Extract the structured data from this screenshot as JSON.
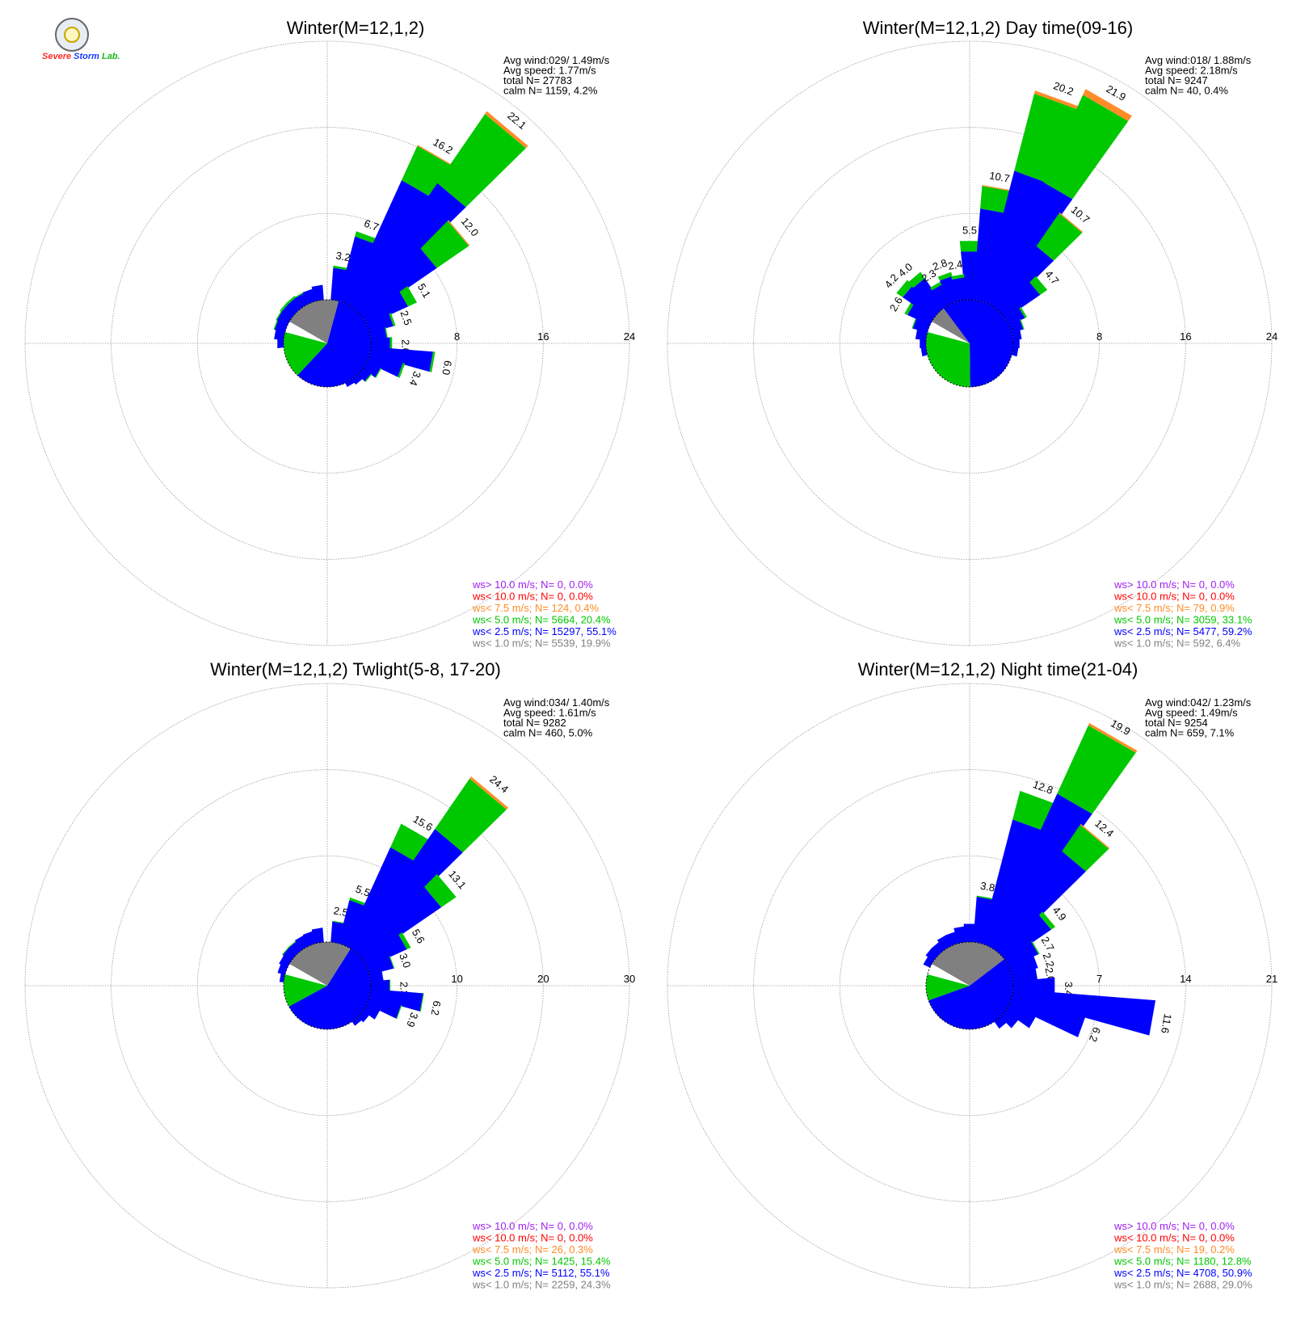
{
  "logo": {
    "word_severe": "Severe",
    "word_storm": "Storm",
    "word_lab": "Lab."
  },
  "colors": {
    "gt10": "#a020f0",
    "lt10": "#ff0000",
    "lt75": "#ff8c28",
    "lt50": "#00c800",
    "lt25": "#0000ff",
    "lt10calm": "#808080",
    "grid": "#999999"
  },
  "chart_data": [
    {
      "type": "polar-bar",
      "title": "Winter(M=12,1,2)",
      "rmax": 24,
      "ring_labels": [
        "8",
        "16",
        "24"
      ],
      "summary": [
        "Avg wind:029/ 1.49m/s",
        "Avg speed: 1.77m/s",
        "total N=      27783",
        "calm N=   1159,   4.2%"
      ],
      "inner_pct": {
        "gray": 19.9,
        "blue": 55.1,
        "green": 20.4
      },
      "spokes": [
        {
          "dir": 10,
          "total": 3.2,
          "b": 3.0,
          "gr": 0.2,
          "o": 0,
          "label": "3.2"
        },
        {
          "dir": 20,
          "total": 6.7,
          "b": 6.2,
          "gr": 0.5,
          "o": 0,
          "label": "6.7"
        },
        {
          "dir": 30,
          "total": 16.2,
          "b": 12.6,
          "gr": 3.5,
          "o": 0.1,
          "label": "16.2"
        },
        {
          "dir": 40,
          "total": 22.1,
          "b": 14.0,
          "gr": 7.8,
          "o": 0.3,
          "label": "22.1"
        },
        {
          "dir": 50,
          "total": 12.0,
          "b": 8.3,
          "gr": 3.6,
          "o": 0.1,
          "label": "12.0"
        },
        {
          "dir": 60,
          "total": 5.1,
          "b": 4.2,
          "gr": 0.9,
          "o": 0,
          "label": "5.1"
        },
        {
          "dir": 70,
          "total": 2.5,
          "b": 2.3,
          "gr": 0.2,
          "o": 0,
          "label": "2.5"
        },
        {
          "dir": 80,
          "total": 1.6,
          "b": 1.5,
          "gr": 0.1,
          "o": 0,
          "label": ""
        },
        {
          "dir": 90,
          "total": 2.0,
          "b": 1.8,
          "gr": 0.2,
          "o": 0,
          "label": "2.0"
        },
        {
          "dir": 100,
          "total": 6.0,
          "b": 5.8,
          "gr": 0.2,
          "o": 0,
          "label": "6.0"
        },
        {
          "dir": 110,
          "total": 3.4,
          "b": 3.2,
          "gr": 0.2,
          "o": 0,
          "label": "3.4"
        },
        {
          "dir": 120,
          "total": 1.5,
          "b": 1.4,
          "gr": 0.1,
          "o": 0,
          "label": ""
        },
        {
          "dir": 130,
          "total": 1.0,
          "b": 0.9,
          "gr": 0.1,
          "o": 0,
          "label": ""
        },
        {
          "dir": 140,
          "total": 0.6,
          "b": 0.6,
          "gr": 0,
          "o": 0,
          "label": ""
        },
        {
          "dir": 150,
          "total": 0.4,
          "b": 0.4,
          "gr": 0,
          "o": 0,
          "label": ""
        },
        {
          "dir": 270,
          "total": 0.6,
          "b": 0.6,
          "gr": 0,
          "o": 0,
          "label": ""
        },
        {
          "dir": 280,
          "total": 0.9,
          "b": 0.9,
          "gr": 0,
          "o": 0,
          "label": ""
        },
        {
          "dir": 290,
          "total": 1.1,
          "b": 1.0,
          "gr": 0.1,
          "o": 0,
          "label": ""
        },
        {
          "dir": 300,
          "total": 1.2,
          "b": 1.1,
          "gr": 0.1,
          "o": 0,
          "label": ""
        },
        {
          "dir": 310,
          "total": 1.3,
          "b": 1.1,
          "gr": 0.2,
          "o": 0,
          "label": ""
        },
        {
          "dir": 320,
          "total": 1.3,
          "b": 1.1,
          "gr": 0.2,
          "o": 0,
          "label": ""
        },
        {
          "dir": 330,
          "total": 1.2,
          "b": 1.1,
          "gr": 0.1,
          "o": 0,
          "label": ""
        },
        {
          "dir": 340,
          "total": 1.2,
          "b": 1.2,
          "gr": 0,
          "o": 0,
          "label": ""
        },
        {
          "dir": 350,
          "total": 1.4,
          "b": 1.4,
          "gr": 0,
          "o": 0,
          "label": ""
        }
      ],
      "legend": [
        {
          "text": "ws> 10.0 m/s; N=      0,  0.0%",
          "color": "#a020f0"
        },
        {
          "text": "ws< 10.0 m/s; N=      0,  0.0%",
          "color": "#ff0000"
        },
        {
          "text": "ws<  7.5 m/s; N=    124,  0.4%",
          "color": "#ff8c28"
        },
        {
          "text": "ws<  5.0 m/s; N=  5664, 20.4%",
          "color": "#00c800"
        },
        {
          "text": "ws<  2.5 m/s; N= 15297, 55.1%",
          "color": "#0000ff"
        },
        {
          "text": "ws<  1.0 m/s; N=  5539, 19.9%",
          "color": "#808080"
        }
      ]
    },
    {
      "type": "polar-bar",
      "title": "Winter(M=12,1,2) Day time(09-16)",
      "rmax": 24,
      "ring_labels": [
        "8",
        "16",
        "24"
      ],
      "summary": [
        "Avg wind:018/ 1.88m/s",
        "Avg speed: 2.18m/s",
        "total N=       9247",
        "calm N=     40,   0.4%"
      ],
      "inner_pct": {
        "gray": 6.4,
        "blue": 59.2,
        "green": 33.1
      },
      "spokes": [
        {
          "dir": 0,
          "total": 5.5,
          "b": 4.5,
          "gr": 1.0,
          "o": 0,
          "label": "5.5"
        },
        {
          "dir": 10,
          "total": 10.7,
          "b": 8.5,
          "gr": 2.1,
          "o": 0.1,
          "label": "10.7"
        },
        {
          "dir": 20,
          "total": 20.2,
          "b": 12.5,
          "gr": 7.4,
          "o": 0.3,
          "label": "20.2"
        },
        {
          "dir": 30,
          "total": 21.9,
          "b": 12.4,
          "gr": 8.9,
          "o": 0.6,
          "label": "21.9"
        },
        {
          "dir": 40,
          "total": 10.7,
          "b": 6.9,
          "gr": 3.7,
          "o": 0.1,
          "label": "10.7"
        },
        {
          "dir": 50,
          "total": 4.7,
          "b": 3.9,
          "gr": 0.8,
          "o": 0,
          "label": "4.7"
        },
        {
          "dir": 60,
          "total": 1.8,
          "b": 1.6,
          "gr": 0.2,
          "o": 0,
          "label": ""
        },
        {
          "dir": 70,
          "total": 1.2,
          "b": 1.1,
          "gr": 0.1,
          "o": 0,
          "label": ""
        },
        {
          "dir": 80,
          "total": 0.8,
          "b": 0.8,
          "gr": 0,
          "o": 0,
          "label": ""
        },
        {
          "dir": 90,
          "total": 0.6,
          "b": 0.6,
          "gr": 0,
          "o": 0,
          "label": ""
        },
        {
          "dir": 100,
          "total": 0.5,
          "b": 0.5,
          "gr": 0,
          "o": 0,
          "label": ""
        },
        {
          "dir": 260,
          "total": 0.5,
          "b": 0.5,
          "gr": 0,
          "o": 0,
          "label": ""
        },
        {
          "dir": 270,
          "total": 0.6,
          "b": 0.6,
          "gr": 0,
          "o": 0,
          "label": ""
        },
        {
          "dir": 280,
          "total": 1.0,
          "b": 1.0,
          "gr": 0,
          "o": 0,
          "label": ""
        },
        {
          "dir": 290,
          "total": 1.5,
          "b": 1.4,
          "gr": 0.1,
          "o": 0,
          "label": ""
        },
        {
          "dir": 300,
          "total": 2.6,
          "b": 2.3,
          "gr": 0.3,
          "o": 0,
          "label": "2.6"
        },
        {
          "dir": 310,
          "total": 4.2,
          "b": 3.5,
          "gr": 0.7,
          "o": 0,
          "label": "4.2"
        },
        {
          "dir": 320,
          "total": 4.0,
          "b": 3.3,
          "gr": 0.7,
          "o": 0,
          "label": "4.0"
        },
        {
          "dir": 330,
          "total": 2.3,
          "b": 2.0,
          "gr": 0.3,
          "o": 0,
          "label": "2.3"
        },
        {
          "dir": 340,
          "total": 2.8,
          "b": 2.4,
          "gr": 0.4,
          "o": 0,
          "label": "2.8"
        },
        {
          "dir": 350,
          "total": 2.4,
          "b": 2.1,
          "gr": 0.3,
          "o": 0,
          "label": "2.4"
        }
      ],
      "legend": [
        {
          "text": "ws> 10.0 m/s; N=      0,  0.0%",
          "color": "#a020f0"
        },
        {
          "text": "ws< 10.0 m/s; N=      0,  0.0%",
          "color": "#ff0000"
        },
        {
          "text": "ws<  7.5 m/s; N=     79,  0.9%",
          "color": "#ff8c28"
        },
        {
          "text": "ws<  5.0 m/s; N=  3059, 33.1%",
          "color": "#00c800"
        },
        {
          "text": "ws<  2.5 m/s; N=  5477, 59.2%",
          "color": "#0000ff"
        },
        {
          "text": "ws<  1.0 m/s; N=    592,  6.4%",
          "color": "#808080"
        }
      ]
    },
    {
      "type": "polar-bar",
      "title": "Winter(M=12,1,2) Twlight(5-8, 17-20)",
      "rmax": 30,
      "ring_labels": [
        "10",
        "20",
        "30"
      ],
      "summary": [
        "Avg wind:034/ 1.40m/s",
        "Avg speed: 1.61m/s",
        "total N=       9282",
        "calm N=    460,   5.0%"
      ],
      "inner_pct": {
        "gray": 24.3,
        "blue": 55.1,
        "green": 15.4
      },
      "spokes": [
        {
          "dir": 10,
          "total": 2.5,
          "b": 2.4,
          "gr": 0.1,
          "o": 0,
          "label": "2.5"
        },
        {
          "dir": 20,
          "total": 5.5,
          "b": 5.2,
          "gr": 0.3,
          "o": 0,
          "label": "5.5"
        },
        {
          "dir": 30,
          "total": 15.6,
          "b": 12.6,
          "gr": 3.0,
          "o": 0,
          "label": "15.6"
        },
        {
          "dir": 40,
          "total": 24.4,
          "b": 17.0,
          "gr": 7.1,
          "o": 0.3,
          "label": "24.4"
        },
        {
          "dir": 50,
          "total": 13.1,
          "b": 11.0,
          "gr": 2.1,
          "o": 0,
          "label": "13.1"
        },
        {
          "dir": 60,
          "total": 5.6,
          "b": 5.1,
          "gr": 0.5,
          "o": 0,
          "label": "5.6"
        },
        {
          "dir": 70,
          "total": 3.0,
          "b": 2.9,
          "gr": 0.1,
          "o": 0,
          "label": "3.0"
        },
        {
          "dir": 80,
          "total": 1.5,
          "b": 1.5,
          "gr": 0,
          "o": 0,
          "label": ""
        },
        {
          "dir": 90,
          "total": 2.3,
          "b": 2.2,
          "gr": 0.1,
          "o": 0,
          "label": "2.3"
        },
        {
          "dir": 100,
          "total": 6.2,
          "b": 6.1,
          "gr": 0.1,
          "o": 0,
          "label": "6.2"
        },
        {
          "dir": 110,
          "total": 3.9,
          "b": 3.8,
          "gr": 0.1,
          "o": 0,
          "label": "3.9"
        },
        {
          "dir": 120,
          "total": 1.7,
          "b": 1.7,
          "gr": 0,
          "o": 0,
          "label": ""
        },
        {
          "dir": 130,
          "total": 0.9,
          "b": 0.9,
          "gr": 0,
          "o": 0,
          "label": ""
        },
        {
          "dir": 140,
          "total": 0.6,
          "b": 0.6,
          "gr": 0,
          "o": 0,
          "label": ""
        },
        {
          "dir": 280,
          "total": 0.5,
          "b": 0.5,
          "gr": 0,
          "o": 0,
          "label": ""
        },
        {
          "dir": 290,
          "total": 0.9,
          "b": 0.9,
          "gr": 0,
          "o": 0,
          "label": ""
        },
        {
          "dir": 300,
          "total": 1.1,
          "b": 1.1,
          "gr": 0,
          "o": 0,
          "label": ""
        },
        {
          "dir": 310,
          "total": 1.3,
          "b": 1.2,
          "gr": 0.1,
          "o": 0,
          "label": ""
        },
        {
          "dir": 320,
          "total": 1.3,
          "b": 1.2,
          "gr": 0.1,
          "o": 0,
          "label": ""
        },
        {
          "dir": 330,
          "total": 1.4,
          "b": 1.4,
          "gr": 0,
          "o": 0,
          "label": ""
        },
        {
          "dir": 340,
          "total": 1.5,
          "b": 1.5,
          "gr": 0,
          "o": 0,
          "label": ""
        },
        {
          "dir": 350,
          "total": 1.7,
          "b": 1.7,
          "gr": 0,
          "o": 0,
          "label": ""
        }
      ],
      "legend": [
        {
          "text": "ws> 10.0 m/s; N=      0,  0.0%",
          "color": "#a020f0"
        },
        {
          "text": "ws< 10.0 m/s; N=      0,  0.0%",
          "color": "#ff0000"
        },
        {
          "text": "ws<  7.5 m/s; N=     26,  0.3%",
          "color": "#ff8c28"
        },
        {
          "text": "ws<  5.0 m/s; N=  1425, 15.4%",
          "color": "#00c800"
        },
        {
          "text": "ws<  2.5 m/s; N=  5112, 55.1%",
          "color": "#0000ff"
        },
        {
          "text": "ws<  1.0 m/s; N=  2259, 24.3%",
          "color": "#808080"
        }
      ]
    },
    {
      "type": "polar-bar",
      "title": "Winter(M=12,1,2) Night time(21-04)",
      "rmax": 21,
      "ring_labels": [
        "7",
        "14",
        "21"
      ],
      "summary": [
        "Avg wind:042/ 1.23m/s",
        "Avg speed: 1.49m/s",
        "total N=       9254",
        "calm N=    659,   7.1%"
      ],
      "inner_pct": {
        "gray": 29.0,
        "blue": 50.9,
        "green": 12.8
      },
      "spokes": [
        {
          "dir": 0,
          "total": 1.5,
          "b": 1.5,
          "gr": 0,
          "o": 0,
          "label": ""
        },
        {
          "dir": 10,
          "total": 3.8,
          "b": 3.7,
          "gr": 0.1,
          "o": 0,
          "label": "3.8"
        },
        {
          "dir": 20,
          "total": 12.8,
          "b": 10.4,
          "gr": 2.4,
          "o": 0,
          "label": "12.8"
        },
        {
          "dir": 30,
          "total": 19.9,
          "b": 13.6,
          "gr": 6.1,
          "o": 0.2,
          "label": "19.9"
        },
        {
          "dir": 40,
          "total": 12.4,
          "b": 9.7,
          "gr": 2.6,
          "o": 0.1,
          "label": "12.4"
        },
        {
          "dir": 50,
          "total": 4.9,
          "b": 4.5,
          "gr": 0.4,
          "o": 0,
          "label": "4.9"
        },
        {
          "dir": 60,
          "total": 2.7,
          "b": 2.6,
          "gr": 0.1,
          "o": 0,
          "label": "2.7"
        },
        {
          "dir": 70,
          "total": 2.2,
          "b": 2.2,
          "gr": 0,
          "o": 0,
          "label": "2.2"
        },
        {
          "dir": 80,
          "total": 2.0,
          "b": 2.0,
          "gr": 0,
          "o": 0,
          "label": "2.0"
        },
        {
          "dir": 90,
          "total": 3.4,
          "b": 3.4,
          "gr": 0,
          "o": 0,
          "label": "3.4"
        },
        {
          "dir": 100,
          "total": 11.6,
          "b": 11.6,
          "gr": 0,
          "o": 0,
          "label": "11.6"
        },
        {
          "dir": 110,
          "total": 6.2,
          "b": 6.2,
          "gr": 0,
          "o": 0,
          "label": "6.2"
        },
        {
          "dir": 120,
          "total": 2.4,
          "b": 2.4,
          "gr": 0,
          "o": 0,
          "label": ""
        },
        {
          "dir": 130,
          "total": 1.3,
          "b": 1.3,
          "gr": 0,
          "o": 0,
          "label": ""
        },
        {
          "dir": 140,
          "total": 0.7,
          "b": 0.7,
          "gr": 0,
          "o": 0,
          "label": ""
        },
        {
          "dir": 300,
          "total": 0.6,
          "b": 0.6,
          "gr": 0,
          "o": 0,
          "label": ""
        },
        {
          "dir": 310,
          "total": 0.8,
          "b": 0.8,
          "gr": 0,
          "o": 0,
          "label": ""
        },
        {
          "dir": 320,
          "total": 0.8,
          "b": 0.8,
          "gr": 0,
          "o": 0,
          "label": ""
        },
        {
          "dir": 330,
          "total": 1.0,
          "b": 1.0,
          "gr": 0,
          "o": 0,
          "label": ""
        },
        {
          "dir": 340,
          "total": 1.0,
          "b": 1.0,
          "gr": 0,
          "o": 0,
          "label": ""
        },
        {
          "dir": 350,
          "total": 1.3,
          "b": 1.3,
          "gr": 0,
          "o": 0,
          "label": ""
        }
      ],
      "legend": [
        {
          "text": "ws> 10.0 m/s; N=      0,  0.0%",
          "color": "#a020f0"
        },
        {
          "text": "ws< 10.0 m/s; N=      0,  0.0%",
          "color": "#ff0000"
        },
        {
          "text": "ws<  7.5 m/s; N=     19,  0.2%",
          "color": "#ff8c28"
        },
        {
          "text": "ws<  5.0 m/s; N=  1180, 12.8%",
          "color": "#00c800"
        },
        {
          "text": "ws<  2.5 m/s; N=  4708, 50.9%",
          "color": "#0000ff"
        },
        {
          "text": "ws<  1.0 m/s; N=  2688, 29.0%",
          "color": "#808080"
        }
      ]
    }
  ]
}
